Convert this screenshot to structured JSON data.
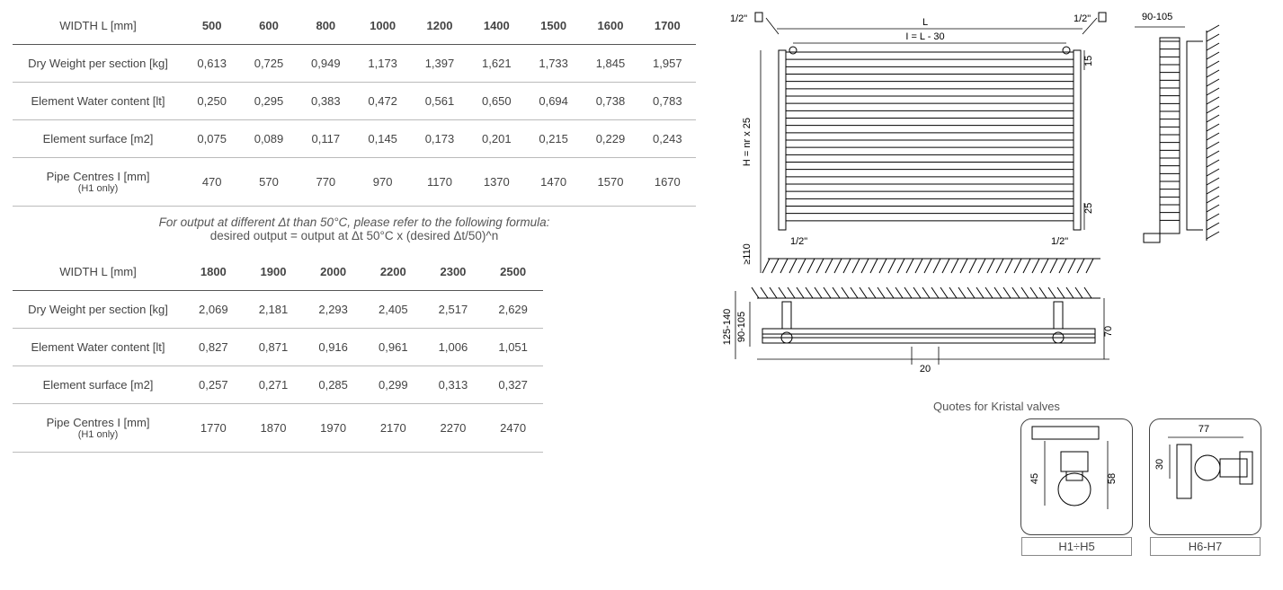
{
  "table1": {
    "header_label": "WIDTH L [mm]",
    "widths": [
      "500",
      "600",
      "800",
      "1000",
      "1200",
      "1400",
      "1500",
      "1600",
      "1700"
    ],
    "rows": [
      {
        "label": "Dry Weight per section [kg]",
        "sub": "",
        "vals": [
          "0,613",
          "0,725",
          "0,949",
          "1,173",
          "1,397",
          "1,621",
          "1,733",
          "1,845",
          "1,957"
        ]
      },
      {
        "label": "Element Water content [lt]",
        "sub": "",
        "vals": [
          "0,250",
          "0,295",
          "0,383",
          "0,472",
          "0,561",
          "0,650",
          "0,694",
          "0,738",
          "0,783"
        ]
      },
      {
        "label": "Element surface [m2]",
        "sub": "",
        "vals": [
          "0,075",
          "0,089",
          "0,117",
          "0,145",
          "0,173",
          "0,201",
          "0,215",
          "0,229",
          "0,243"
        ]
      },
      {
        "label": "Pipe Centres I [mm]",
        "sub": "(H1 only)",
        "vals": [
          "470",
          "570",
          "770",
          "970",
          "1170",
          "1370",
          "1470",
          "1570",
          "1670"
        ]
      }
    ]
  },
  "formula": {
    "line1_italic": "For output at different Δt than 50°C, please refer to the following formula:",
    "line2": "desired output = output at Δt 50°C x (desired Δt/50)^n"
  },
  "table2": {
    "header_label": "WIDTH L [mm]",
    "widths": [
      "1800",
      "1900",
      "2000",
      "2200",
      "2300",
      "2500"
    ],
    "rows": [
      {
        "label": "Dry Weight per section [kg]",
        "sub": "",
        "vals": [
          "2,069",
          "2,181",
          "2,293",
          "2,405",
          "2,517",
          "2,629"
        ]
      },
      {
        "label": "Element Water content [lt]",
        "sub": "",
        "vals": [
          "0,827",
          "0,871",
          "0,916",
          "0,961",
          "1,006",
          "1,051"
        ]
      },
      {
        "label": "Element surface [m2]",
        "sub": "",
        "vals": [
          "0,257",
          "0,271",
          "0,285",
          "0,299",
          "0,313",
          "0,327"
        ]
      },
      {
        "label": "Pipe Centres I [mm]",
        "sub": "(H1 only)",
        "vals": [
          "1770",
          "1870",
          "1970",
          "2170",
          "2270",
          "2470"
        ]
      }
    ]
  },
  "diagrams": {
    "front": {
      "half_inch": "1/2\"",
      "L": "L",
      "I_eq": "I = L - 30",
      "H_label": "H = nr x 25",
      "dim15": "15",
      "dim25": "25",
      "dim110": "≥110",
      "bar_count": 24
    },
    "side": {
      "dim_range": "90-105"
    },
    "bottom": {
      "range1": "125-140",
      "range2": "90-105",
      "dim20": "20",
      "dim70": "70"
    },
    "valves": {
      "title": "Quotes for Kristal valves",
      "left": {
        "dim45": "45",
        "dim58": "58",
        "label": "H1÷H5"
      },
      "right": {
        "dim77": "77",
        "dim30": "30",
        "label": "H6-H7"
      }
    }
  },
  "colors": {
    "rule": "#555555",
    "subrule": "#bbbbbb",
    "text": "#444444"
  }
}
